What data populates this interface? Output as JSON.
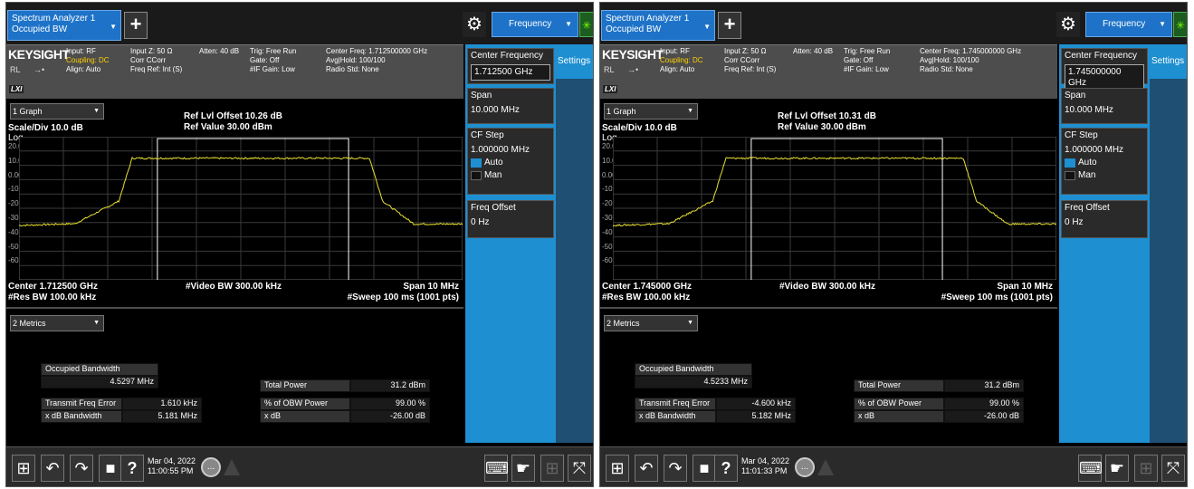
{
  "panels": [
    {
      "app_tab": {
        "line1": "Spectrum Analyzer 1",
        "line2": "Occupied BW"
      },
      "add_tab_label": "+",
      "menu_label": "Frequency",
      "info": {
        "brand": "KEYSIGHT",
        "rl": "RL",
        "lxi": "LXI",
        "col1": [
          "Input: RF",
          "Coupling: DC",
          "Align: Auto"
        ],
        "col2": [
          "Input Z: 50 Ω",
          "Corr CCorr",
          "Freq Ref: Int (S)"
        ],
        "col3": [
          "Atten: 40 dB"
        ],
        "col4": [
          "Trig: Free Run",
          "Gate: Off",
          "#IF Gain: Low"
        ],
        "col5": [
          "Center Freq: 1.712500000 GHz",
          "Avg|Hold: 100/100",
          "Radio Std: None"
        ]
      },
      "graph": {
        "selector": "1 Graph",
        "ref_offset": "Ref Lvl Offset 10.26 dB",
        "ref_value": "Ref Value 30.00 dBm",
        "scale": "Scale/Div 10.0 dB",
        "log": "Log",
        "yticks": [
          "20.0",
          "10.0",
          "0.00",
          "-10.0",
          "-20.0",
          "-30.0",
          "-40.0",
          "-50.0",
          "-60.0"
        ],
        "center": "Center 1.712500 GHz",
        "res_bw": "#Res BW 100.00 kHz",
        "video_bw": "#Video BW 300.00 kHz",
        "span": "Span 10 MHz",
        "sweep": "#Sweep 100 ms (1001 pts)"
      },
      "metrics": {
        "selector": "2 Metrics",
        "obw_label": "Occupied Bandwidth",
        "obw_value": "4.5297 MHz",
        "tfe_label": "Transmit Freq Error",
        "tfe_value": "1.610 kHz",
        "xdb_bw_label": "x dB Bandwidth",
        "xdb_bw_value": "5.181 MHz",
        "total_power_label": "Total Power",
        "total_power_value": "31.2 dBm",
        "obw_pct_label": "% of OBW Power",
        "obw_pct_value": "99.00 %",
        "xdb_label": "x dB",
        "xdb_value": "-26.00 dB"
      },
      "softkeys": {
        "settings": "Settings",
        "center_freq_label": "Center Frequency",
        "center_freq_value": "1.712500 GHz",
        "span_label": "Span",
        "span_value": "10.000 MHz",
        "cf_step_label": "CF Step",
        "cf_step_value": "1.000000 MHz",
        "auto_label": "Auto",
        "man_label": "Man",
        "freq_offset_label": "Freq Offset",
        "freq_offset_value": "0 Hz"
      },
      "taskbar": {
        "date": "Mar 04, 2022",
        "time": "11:00:55 PM",
        "help": "?",
        "dots": "..."
      }
    },
    {
      "app_tab": {
        "line1": "Spectrum Analyzer 1",
        "line2": "Occupied BW"
      },
      "add_tab_label": "+",
      "menu_label": "Frequency",
      "info": {
        "brand": "KEYSIGHT",
        "rl": "RL",
        "lxi": "LXI",
        "col1": [
          "Input: RF",
          "Coupling: DC",
          "Align: Auto"
        ],
        "col2": [
          "Input Z: 50 Ω",
          "Corr CCorr",
          "Freq Ref: Int (S)"
        ],
        "col3": [
          "Atten: 40 dB"
        ],
        "col4": [
          "Trig: Free Run",
          "Gate: Off",
          "#IF Gain: Low"
        ],
        "col5": [
          "Center Freq: 1.745000000 GHz",
          "Avg|Hold: 100/100",
          "Radio Std: None"
        ]
      },
      "graph": {
        "selector": "1 Graph",
        "ref_offset": "Ref Lvl Offset 10.31 dB",
        "ref_value": "Ref Value 30.00 dBm",
        "scale": "Scale/Div 10.0 dB",
        "log": "Log",
        "yticks": [
          "20.0",
          "10.0",
          "0.00",
          "-10.0",
          "-20.0",
          "-30.0",
          "-40.0",
          "-50.0",
          "-60.0"
        ],
        "center": "Center 1.745000 GHz",
        "res_bw": "#Res BW 100.00 kHz",
        "video_bw": "#Video BW 300.00 kHz",
        "span": "Span 10 MHz",
        "sweep": "#Sweep 100 ms (1001 pts)"
      },
      "metrics": {
        "selector": "2 Metrics",
        "obw_label": "Occupied Bandwidth",
        "obw_value": "4.5233 MHz",
        "tfe_label": "Transmit Freq Error",
        "tfe_value": "-4.600 kHz",
        "xdb_bw_label": "x dB Bandwidth",
        "xdb_bw_value": "5.182 MHz",
        "total_power_label": "Total Power",
        "total_power_value": "31.2 dBm",
        "obw_pct_label": "% of OBW Power",
        "obw_pct_value": "99.00 %",
        "xdb_label": "x dB",
        "xdb_value": "-26.00 dB"
      },
      "softkeys": {
        "settings": "Settings",
        "center_freq_label": "Center Frequency",
        "center_freq_value": "1.745000000 GHz",
        "span_label": "Span",
        "span_value": "10.000 MHz",
        "cf_step_label": "CF Step",
        "cf_step_value": "1.000000 MHz",
        "auto_label": "Auto",
        "man_label": "Man",
        "freq_offset_label": "Freq Offset",
        "freq_offset_value": "0 Hz"
      },
      "taskbar": {
        "date": "Mar 04, 2022",
        "time": "11:01:33 PM",
        "help": "?",
        "dots": "..."
      }
    }
  ],
  "colors": {
    "trace": "#e8e030",
    "accent": "#1e8fd0",
    "grid": "#3a3a3a"
  }
}
